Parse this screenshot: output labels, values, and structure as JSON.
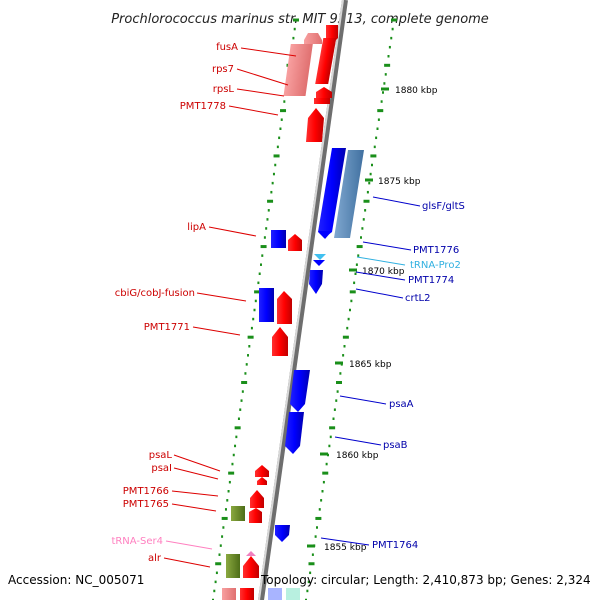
{
  "title": "Prochlorococcus marinus str. MIT 9313, complete genome",
  "footer": {
    "accession": "Accession: NC_005071",
    "topology": "Topology: circular; Length: 2,410,873 bp; Genes: 2,324"
  },
  "kbp_marks": [
    "1880 kbp",
    "1875 kbp",
    "1870 kbp",
    "1865 kbp",
    "1860 kbp",
    "1855 kbp"
  ],
  "colors": {
    "forward_gene": "#ff0000",
    "reverse_gene": "#0000ff",
    "pseudo_forward": "#f08080",
    "rrna": "#6b8e23",
    "trna_reverse": "#40c0f0",
    "trna_forward": "#f080c0",
    "backbone": "#7f7f7f",
    "tick": "#1a8f1a"
  },
  "left_genes": [
    {
      "label": "fusA",
      "color": "#cc0000"
    },
    {
      "label": "rps7",
      "color": "#cc0000"
    },
    {
      "label": "rpsL",
      "color": "#cc0000"
    },
    {
      "label": "PMT1778",
      "color": "#cc0000"
    },
    {
      "label": "lipA",
      "color": "#cc0000"
    },
    {
      "label": "cbiG/cobJ-fusion",
      "color": "#cc0000"
    },
    {
      "label": "PMT1771",
      "color": "#cc0000"
    },
    {
      "label": "psaL",
      "color": "#cc0000"
    },
    {
      "label": "psaI",
      "color": "#cc0000"
    },
    {
      "label": "PMT1766",
      "color": "#cc0000"
    },
    {
      "label": "PMT1765",
      "color": "#cc0000"
    },
    {
      "label": "tRNA-Ser4",
      "color": "#ff80c0"
    },
    {
      "label": "alr",
      "color": "#cc0000"
    }
  ],
  "right_genes": [
    {
      "label": "glsF/gltS",
      "color": "#0000aa"
    },
    {
      "label": "PMT1776",
      "color": "#0000aa"
    },
    {
      "label": "tRNA-Pro2",
      "color": "#30b0e0"
    },
    {
      "label": "PMT1774",
      "color": "#0000aa"
    },
    {
      "label": "crtL2",
      "color": "#0000aa"
    },
    {
      "label": "psaA",
      "color": "#0000aa"
    },
    {
      "label": "psaB",
      "color": "#0000aa"
    },
    {
      "label": "PMT1764",
      "color": "#0000aa"
    }
  ]
}
